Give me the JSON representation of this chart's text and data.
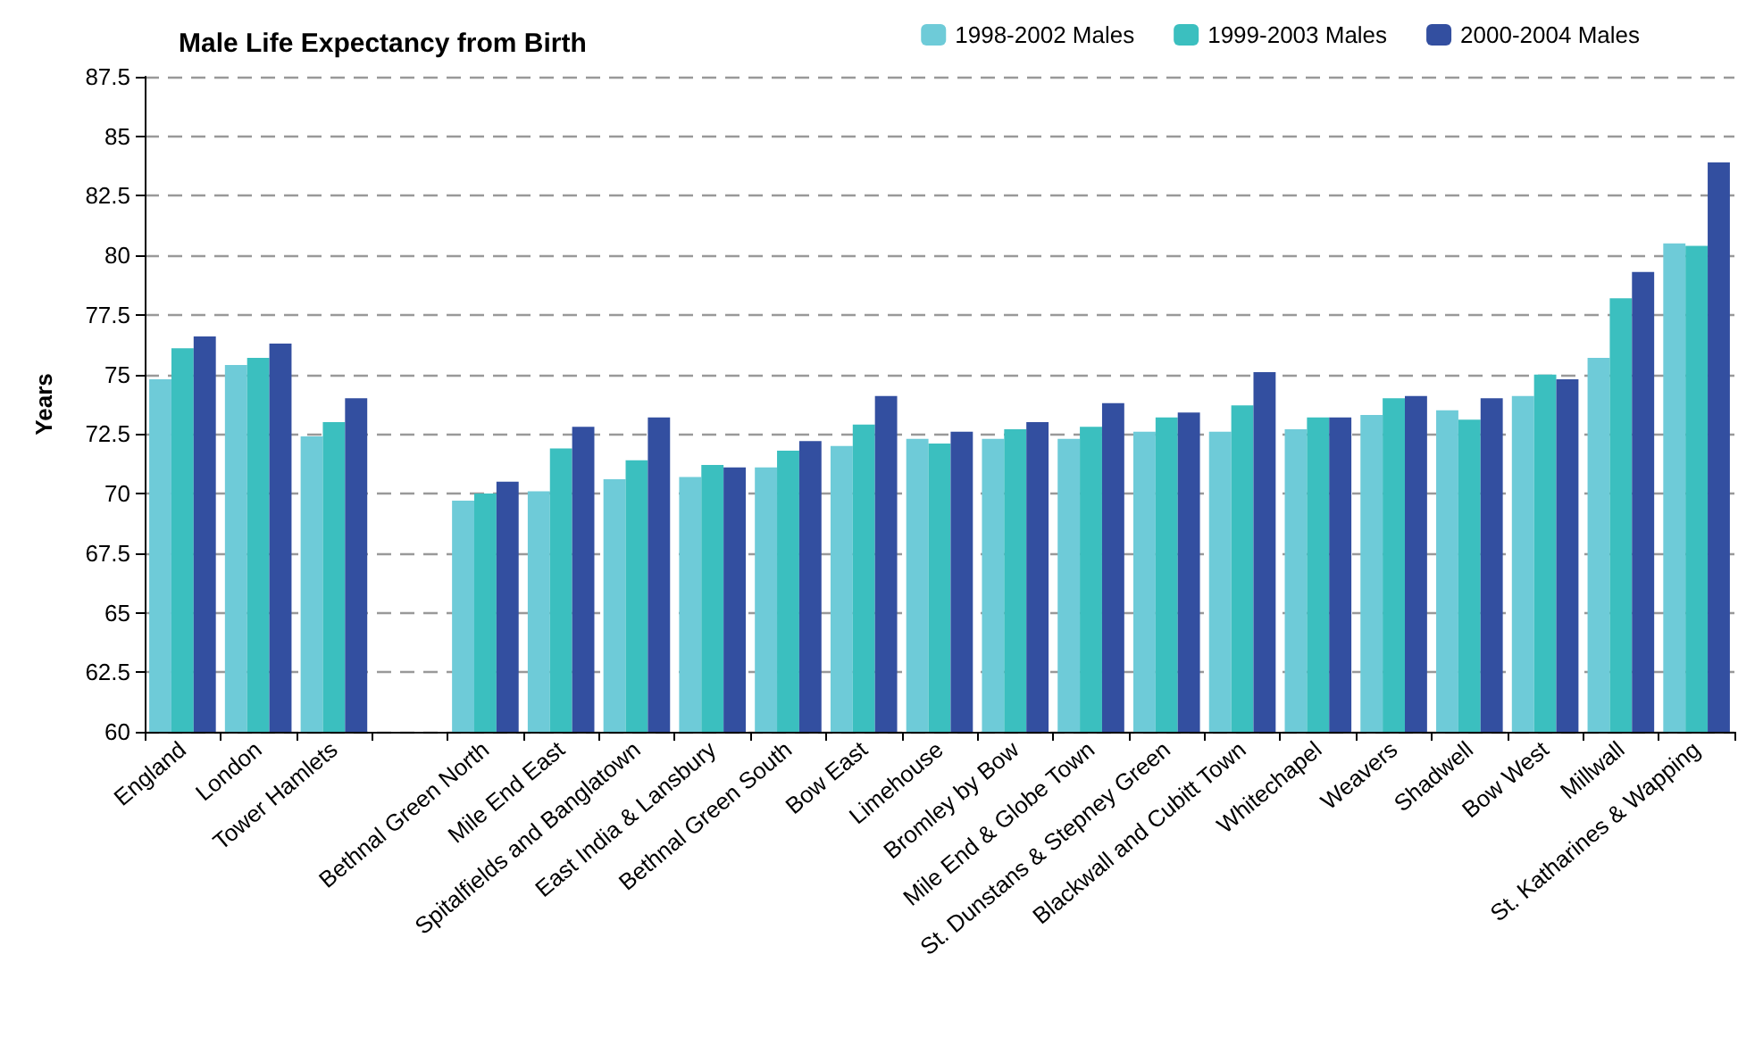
{
  "chart_data": {
    "type": "bar",
    "title": "Male Life Expectancy from Birth",
    "ylabel": "Years",
    "categories": [
      "England",
      "London",
      "Tower Hamlets",
      null,
      "Bethnal Green North",
      "Mile End East",
      "Spitalfields and Banglatown",
      "East India & Lansbury",
      "Bethnal Green South",
      "Bow East",
      "Limehouse",
      "Bromley by Bow",
      "Mile End & Globe Town",
      "St. Dunstans & Stepney Green",
      "Blackwall and Cubitt Town",
      "Whitechapel",
      "Weavers",
      "Shadwell",
      "Bow West",
      "Millwall",
      "St. Katharines & Wapping"
    ],
    "series": [
      {
        "name": "1998-2002 Males",
        "color": "#6ecbd8",
        "values": [
          74.8,
          75.4,
          72.4,
          null,
          69.7,
          70.1,
          70.6,
          70.7,
          71.1,
          72.0,
          72.3,
          72.3,
          72.3,
          72.6,
          72.6,
          72.7,
          73.3,
          73.5,
          74.1,
          75.7,
          80.5
        ]
      },
      {
        "name": "1999-2003 Males",
        "color": "#3bbfbf",
        "values": [
          76.1,
          75.7,
          73.0,
          null,
          70.0,
          71.9,
          71.4,
          71.2,
          71.8,
          72.9,
          72.1,
          72.7,
          72.8,
          73.2,
          73.7,
          73.2,
          74.0,
          73.1,
          75.0,
          78.2,
          80.4
        ]
      },
      {
        "name": "2000-2004 Males",
        "color": "#334fa0",
        "values": [
          76.6,
          76.3,
          74.0,
          null,
          70.5,
          72.8,
          73.2,
          71.1,
          72.2,
          74.1,
          72.6,
          73.0,
          73.8,
          73.4,
          75.1,
          73.2,
          74.1,
          74.0,
          74.8,
          79.3,
          83.9
        ]
      }
    ],
    "ylim": [
      60,
      87.5
    ],
    "yticks": [
      60,
      62.5,
      65,
      67.5,
      70,
      72.5,
      75,
      77.5,
      80,
      82.5,
      85,
      87.5
    ],
    "grid": "y",
    "legend": "top right"
  }
}
